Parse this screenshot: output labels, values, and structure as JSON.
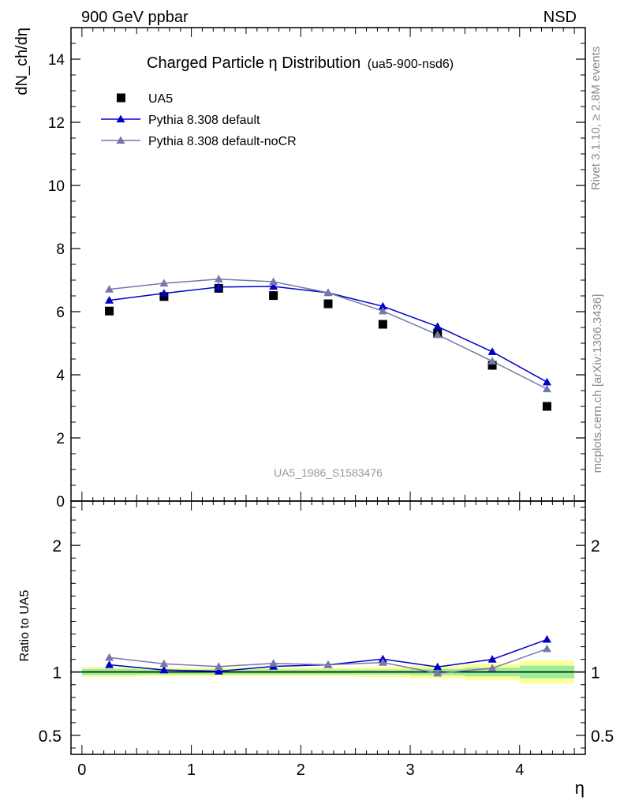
{
  "header": {
    "left": "900 GeV ppbar",
    "right": "NSD"
  },
  "side": {
    "rivet": "Rivet 3.1.10, ≥ 2.8M events",
    "mcplots": "mcplots.cern.ch [arXiv:1306.3436]"
  },
  "chart_data": [
    {
      "type": "scatter",
      "title": "Charged Particle η Distribution",
      "subtitle": "(ua5-900-nsd6)",
      "ylabel": "dN_ch/dη",
      "ylim": [
        0,
        15
      ],
      "yticks": [
        "0",
        "2",
        "4",
        "6",
        "8",
        "10",
        "12",
        "14"
      ],
      "xlim": [
        -0.1,
        4.6
      ],
      "watermark": "UA5_1986_S1583476",
      "legend_position": "top-left",
      "x": [
        0.25,
        0.75,
        1.25,
        1.75,
        2.25,
        2.75,
        3.25,
        3.75,
        4.25
      ],
      "series": [
        {
          "name": "UA5",
          "color": "#000000",
          "marker": "square",
          "values": [
            6.02,
            6.48,
            6.74,
            6.51,
            6.25,
            5.6,
            5.32,
            4.3,
            3.0
          ]
        },
        {
          "name": "Pythia 8.308 default",
          "color": "#0000cc",
          "marker": "triangle",
          "values": [
            6.36,
            6.58,
            6.78,
            6.8,
            6.6,
            6.17,
            5.53,
            4.73,
            3.77
          ]
        },
        {
          "name": "Pythia 8.308 default-noCR",
          "color": "#7777aa",
          "marker": "triangle",
          "values": [
            6.71,
            6.9,
            7.03,
            6.95,
            6.6,
            6.02,
            5.27,
            4.43,
            3.55
          ]
        }
      ]
    },
    {
      "type": "line",
      "ylabel": "Ratio to UA5",
      "ylim": [
        0.35,
        2.35
      ],
      "yticks": [
        "0.5",
        "1",
        "2"
      ],
      "xlabel": "η",
      "xticks": [
        "0",
        "1",
        "2",
        "3",
        "4"
      ],
      "x": [
        0.25,
        0.75,
        1.25,
        1.75,
        2.25,
        2.75,
        3.25,
        3.75,
        4.25
      ],
      "reference": 1.0,
      "uncertainty_bins": [
        {
          "x0": 0.0,
          "x1": 0.5,
          "stat": 0.025,
          "total": 0.04
        },
        {
          "x0": 0.5,
          "x1": 1.0,
          "stat": 0.02,
          "total": 0.035
        },
        {
          "x0": 1.0,
          "x1": 1.5,
          "stat": 0.02,
          "total": 0.035
        },
        {
          "x0": 1.5,
          "x1": 2.0,
          "stat": 0.02,
          "total": 0.035
        },
        {
          "x0": 2.0,
          "x1": 2.5,
          "stat": 0.02,
          "total": 0.035
        },
        {
          "x0": 2.5,
          "x1": 3.0,
          "stat": 0.02,
          "total": 0.04
        },
        {
          "x0": 3.0,
          "x1": 3.5,
          "stat": 0.025,
          "total": 0.05
        },
        {
          "x0": 3.5,
          "x1": 4.0,
          "stat": 0.035,
          "total": 0.065
        },
        {
          "x0": 4.0,
          "x1": 4.5,
          "stat": 0.05,
          "total": 0.09
        }
      ],
      "band_colors": {
        "total": "#ffff99",
        "stat": "#99ee99"
      },
      "series": [
        {
          "name": "Pythia 8.308 default",
          "color": "#0000cc",
          "values": [
            1.057,
            1.016,
            1.006,
            1.045,
            1.057,
            1.102,
            1.04,
            1.1,
            1.257
          ]
        },
        {
          "name": "Pythia 8.308 default-noCR",
          "color": "#7777aa",
          "values": [
            1.115,
            1.065,
            1.043,
            1.068,
            1.057,
            1.075,
            0.99,
            1.03,
            1.183
          ]
        }
      ]
    }
  ]
}
